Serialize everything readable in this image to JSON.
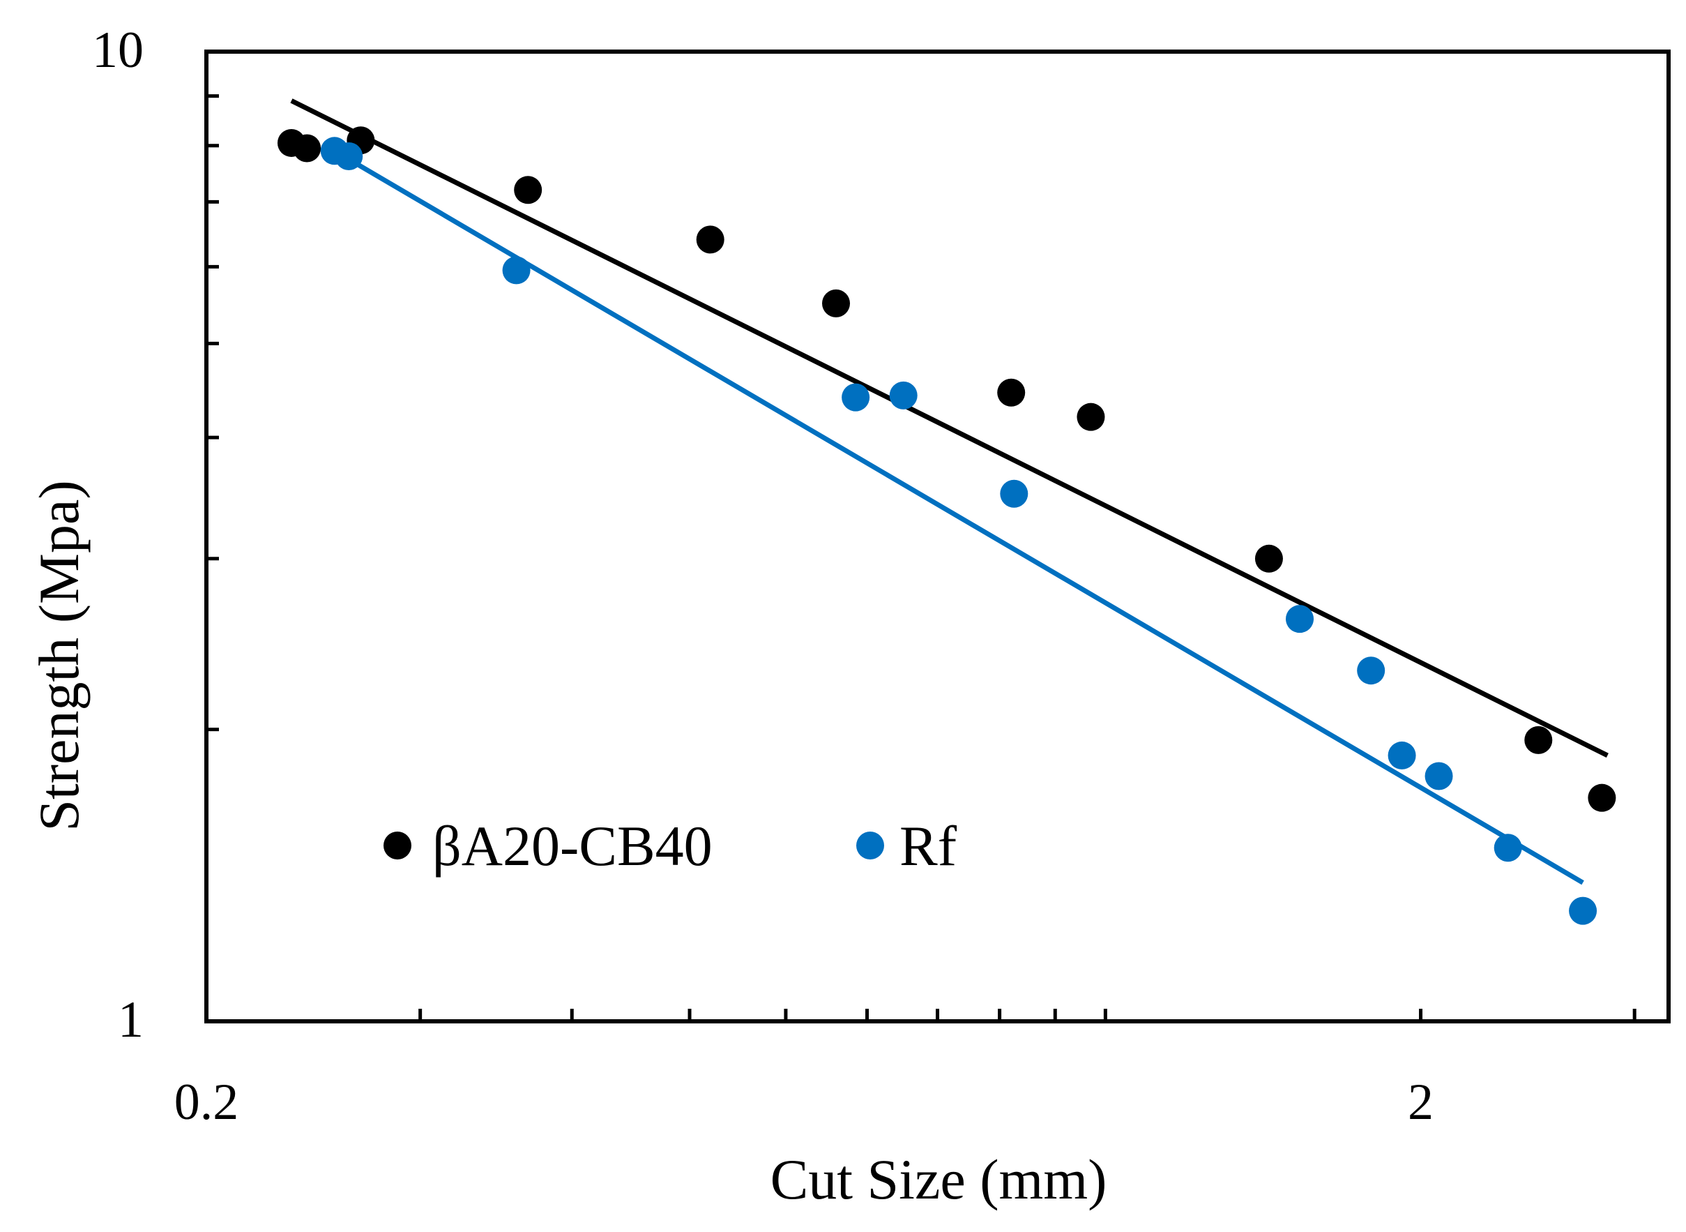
{
  "chart_data": {
    "type": "scatter",
    "title": "",
    "xlabel": "Cut Size (mm)",
    "ylabel": "Strength (Mpa)",
    "xscale": "log",
    "yscale": "log",
    "xlim": [
      0.2,
      3.2
    ],
    "ylim": [
      1,
      10
    ],
    "x_tick_labels": [
      {
        "value": 0.2,
        "label": "0.2"
      },
      {
        "value": 2,
        "label": "2"
      }
    ],
    "y_tick_labels": [
      {
        "value": 1,
        "label": "1"
      },
      {
        "value": 10,
        "label": "10"
      }
    ],
    "x_minor_ticks": [
      0.3,
      0.4,
      0.5,
      0.6,
      0.7,
      0.8,
      0.9,
      1,
      1.1,
      3
    ],
    "y_major_ticks": [
      1,
      2,
      3,
      4,
      5,
      6,
      7,
      8,
      9,
      10
    ],
    "legend_position": "lower-left",
    "series": [
      {
        "name": "βA20-CB40",
        "color": "#000000",
        "points": [
          {
            "x": 0.235,
            "y": 8.05
          },
          {
            "x": 0.242,
            "y": 7.95
          },
          {
            "x": 0.268,
            "y": 8.1
          },
          {
            "x": 0.368,
            "y": 7.2
          },
          {
            "x": 0.52,
            "y": 6.4
          },
          {
            "x": 0.66,
            "y": 5.5
          },
          {
            "x": 0.92,
            "y": 4.45
          },
          {
            "x": 1.07,
            "y": 4.2
          },
          {
            "x": 1.5,
            "y": 3.0
          },
          {
            "x": 2.5,
            "y": 1.95
          },
          {
            "x": 2.82,
            "y": 1.7
          }
        ],
        "trendline": {
          "x": [
            0.235,
            2.85
          ],
          "y": [
            8.9,
            1.88
          ]
        }
      },
      {
        "name": "Rf",
        "color": "#0070C0",
        "points": [
          {
            "x": 0.255,
            "y": 7.9
          },
          {
            "x": 0.262,
            "y": 7.8
          },
          {
            "x": 0.36,
            "y": 5.95
          },
          {
            "x": 0.685,
            "y": 4.4
          },
          {
            "x": 0.75,
            "y": 4.42
          },
          {
            "x": 0.925,
            "y": 3.5
          },
          {
            "x": 1.59,
            "y": 2.6
          },
          {
            "x": 1.82,
            "y": 2.3
          },
          {
            "x": 1.93,
            "y": 1.88
          },
          {
            "x": 2.07,
            "y": 1.79
          },
          {
            "x": 2.36,
            "y": 1.51
          },
          {
            "x": 2.72,
            "y": 1.3
          }
        ],
        "trendline": {
          "x": [
            0.255,
            2.72
          ],
          "y": [
            7.9,
            1.39
          ]
        }
      }
    ]
  }
}
